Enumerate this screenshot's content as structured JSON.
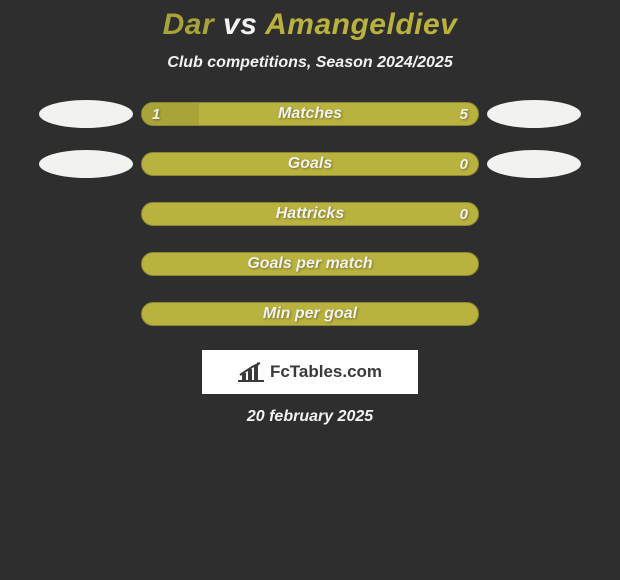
{
  "colors": {
    "background": "#2e2e2e",
    "text_white": "#f2f2f0",
    "text_shadow": "#1a1a1a",
    "player1": "#a8a438",
    "player2": "#b9b23f",
    "bar_track": "#b9b23f",
    "bar_border": "#8d8830",
    "bar_left_fill": "#a8a438",
    "logo_bg": "#ffffff",
    "logo_text": "#3a3a3a"
  },
  "title": {
    "player1": "Dar",
    "vs": "vs",
    "player2": "Amangeldiev",
    "fontsize": 30
  },
  "subtitle": {
    "text": "Club competitions, Season 2024/2025",
    "fontsize": 16
  },
  "badges": {
    "left_color": "#f2f2f0",
    "right_color": "#f2f2f0"
  },
  "stats": [
    {
      "label": "Matches",
      "left_value": "1",
      "right_value": "5",
      "left_pct": 17,
      "right_pct": 83,
      "show_values": true,
      "show_badges": true
    },
    {
      "label": "Goals",
      "left_value": "",
      "right_value": "0",
      "left_pct": 0,
      "right_pct": 100,
      "show_values": true,
      "show_badges": true
    },
    {
      "label": "Hattricks",
      "left_value": "",
      "right_value": "0",
      "left_pct": 0,
      "right_pct": 100,
      "show_values": true,
      "show_badges": false
    },
    {
      "label": "Goals per match",
      "left_value": "",
      "right_value": "",
      "left_pct": 0,
      "right_pct": 100,
      "show_values": false,
      "show_badges": false
    },
    {
      "label": "Min per goal",
      "left_value": "",
      "right_value": "",
      "left_pct": 0,
      "right_pct": 100,
      "show_values": false,
      "show_badges": false
    }
  ],
  "logo": {
    "text": "FcTables.com"
  },
  "date": "20 february 2025"
}
